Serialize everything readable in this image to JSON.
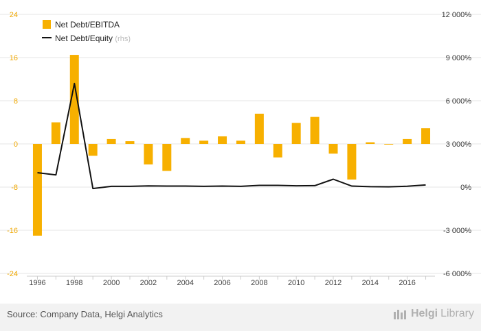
{
  "footer": {
    "source": "Source: Company Data, Helgi Analytics",
    "brand_prefix": "Helgi",
    "brand_suffix": "Library"
  },
  "colors": {
    "bar": "#f7b000",
    "line": "#111111",
    "left_axis_text": "#f0a800",
    "right_axis_text": "#333333",
    "grid": "#e6e6e6",
    "rhs_note": "#bbbbbb"
  },
  "chart_data": {
    "type": "bar+line",
    "categories": [
      "1996",
      "1997",
      "1998",
      "1999",
      "2000",
      "2001",
      "2002",
      "2003",
      "2004",
      "2005",
      "2006",
      "2007",
      "2008",
      "2009",
      "2010",
      "2011",
      "2012",
      "2013",
      "2014",
      "2015",
      "2016",
      "2017"
    ],
    "x_tick_labels": [
      "1996",
      "1998",
      "2000",
      "2002",
      "2004",
      "2006",
      "2008",
      "2010",
      "2012",
      "2014",
      "2016"
    ],
    "series": [
      {
        "name": "Net Debt/EBITDA",
        "type": "bar",
        "axis": "left",
        "values": [
          -17.0,
          4.0,
          16.5,
          -2.2,
          0.9,
          0.5,
          -3.8,
          -5.0,
          1.1,
          0.6,
          1.4,
          0.6,
          5.6,
          -2.5,
          3.9,
          5.0,
          -1.8,
          -6.6,
          0.3,
          -0.1,
          0.9,
          2.9
        ]
      },
      {
        "name": "Net Debt/Equity",
        "type": "line",
        "axis": "right",
        "values": [
          1000,
          850,
          7200,
          -100,
          50,
          50,
          80,
          70,
          70,
          50,
          70,
          50,
          120,
          120,
          90,
          100,
          550,
          70,
          30,
          20,
          60,
          150
        ]
      }
    ],
    "legend": [
      {
        "label": "Net Debt/EBITDA",
        "note": ""
      },
      {
        "label": "Net Debt/Equity",
        "note": "(rhs)"
      }
    ],
    "left_axis": {
      "min": -24,
      "max": 24,
      "ticks": [
        "24",
        "16",
        "8",
        "0",
        "-8",
        "-16",
        "-24"
      ],
      "tick_values": [
        24,
        16,
        8,
        0,
        -8,
        -16,
        -24
      ]
    },
    "right_axis": {
      "min": -6000,
      "max": 12000,
      "ticks": [
        "12 000%",
        "9 000%",
        "6 000%",
        "3 000%",
        "0%",
        "-3 000%",
        "-6 000%"
      ],
      "tick_values": [
        12000,
        9000,
        6000,
        3000,
        0,
        -3000,
        -6000
      ]
    },
    "legend_position": "top-left"
  }
}
